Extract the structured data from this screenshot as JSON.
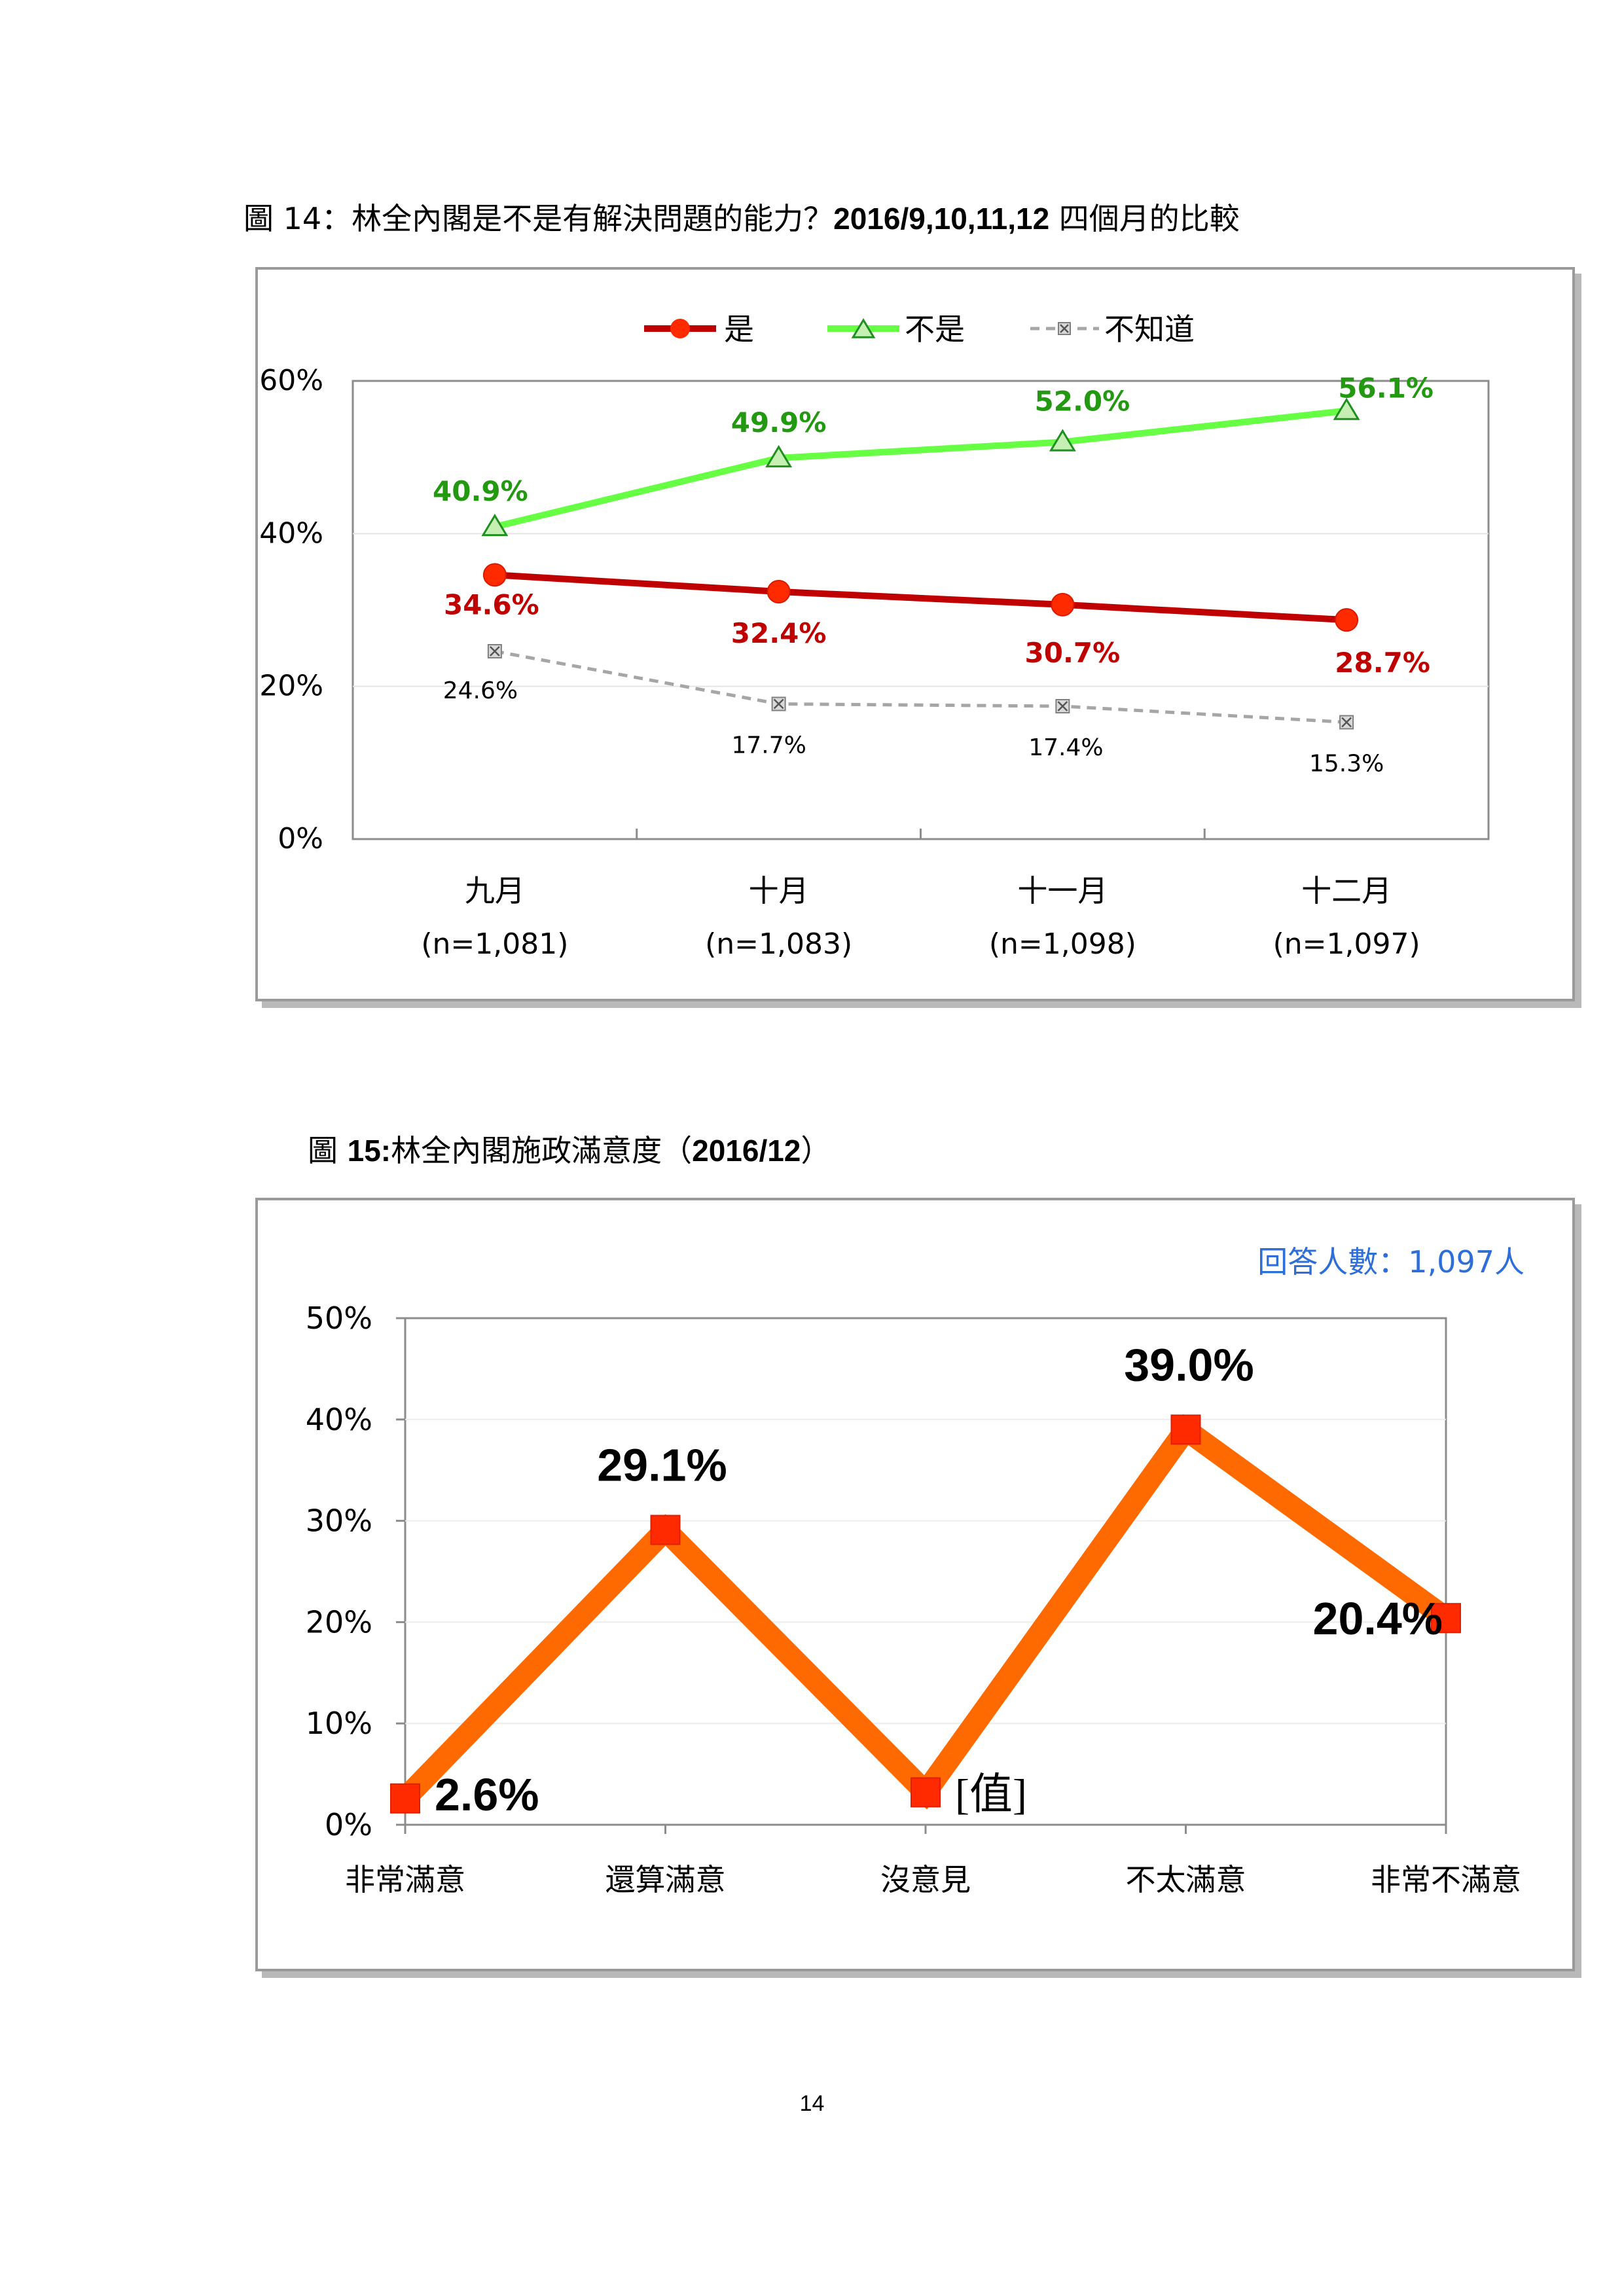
{
  "chart1": {
    "caption_prefix": "圖 14：",
    "caption_main": "林全內閣是不是有解決問題的能力？",
    "caption_bold": "2016/9,10,11,12",
    "caption_suffix": " 四個月的比較",
    "chart_data": {
      "type": "line",
      "categories": [
        "九月",
        "十月",
        "十一月",
        "十二月"
      ],
      "sample_sizes": [
        "(n=1,081)",
        "(n=1,083)",
        "(n=1,098)",
        "(n=1,097)"
      ],
      "ylim": [
        0,
        60
      ],
      "yticks": [
        "0%",
        "20%",
        "40%",
        "60%"
      ],
      "legend_position": "top",
      "series": [
        {
          "name": "是",
          "values": [
            34.6,
            32.4,
            30.7,
            28.7
          ],
          "labels": [
            "34.6%",
            "32.4%",
            "30.7%",
            "28.7%"
          ],
          "color": "#c00000",
          "marker": "circle-red"
        },
        {
          "name": "不是",
          "values": [
            40.9,
            49.9,
            52.0,
            56.1
          ],
          "labels": [
            "40.9%",
            "49.9%",
            "52.0%",
            "56.1%"
          ],
          "color": "#66ff44",
          "label_color": "#229911",
          "marker": "triangle-green"
        },
        {
          "name": "不知道",
          "values": [
            24.6,
            17.7,
            17.4,
            15.3
          ],
          "labels": [
            "24.6%",
            "17.7%",
            "17.4%",
            "15.3%"
          ],
          "color": "#a6a6a6",
          "marker": "square-x-gray"
        }
      ]
    }
  },
  "chart2": {
    "caption_prefix": "圖 ",
    "caption_bold": "15:",
    "caption_main": "林全內閣施政滿意度（",
    "caption_bold2": "2016/12",
    "caption_end": "）",
    "respondents": "回答人數：1,097人",
    "chart_data": {
      "type": "line",
      "categories": [
        "非常滿意",
        "還算滿意",
        "沒意見",
        "不太滿意",
        "非常不滿意"
      ],
      "ylim": [
        0,
        50
      ],
      "yticks": [
        "0%",
        "10%",
        "20%",
        "30%",
        "40%",
        "50%"
      ],
      "series": [
        {
          "values": [
            2.6,
            29.1,
            3.2,
            39.0,
            20.4
          ],
          "labels": [
            "2.6%",
            "29.1%",
            "[值]",
            "39.0%",
            "20.4%"
          ],
          "color": "#ff6a00",
          "marker": "square-red"
        }
      ]
    }
  },
  "page_number": "14"
}
